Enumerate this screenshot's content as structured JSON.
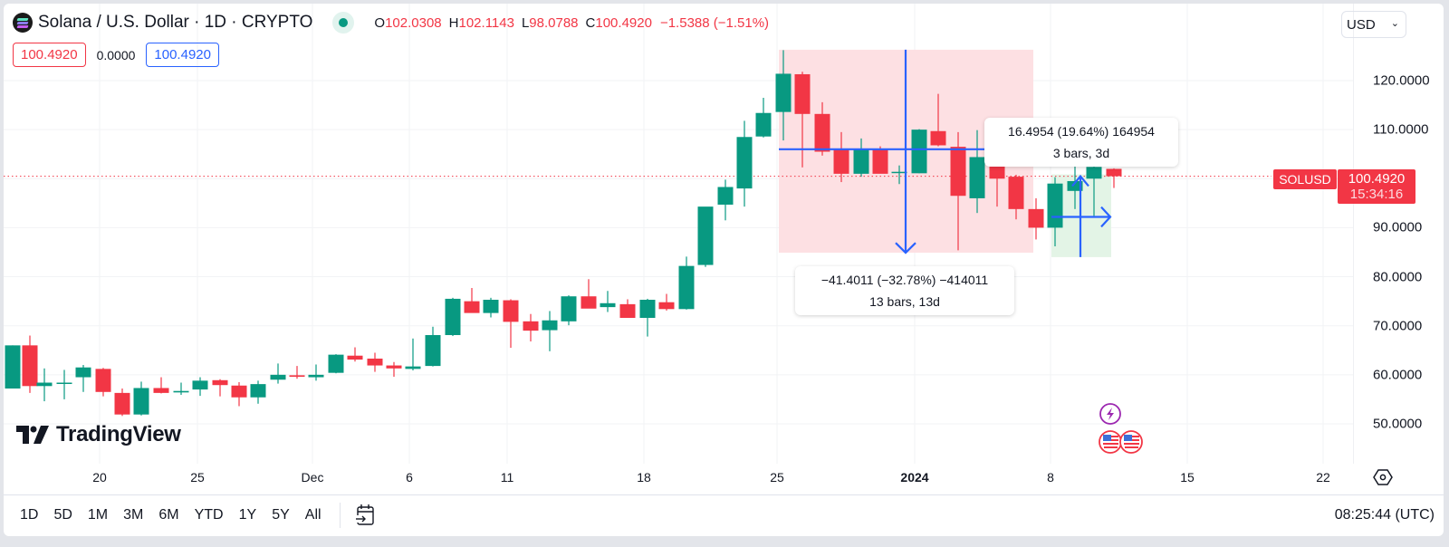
{
  "header": {
    "symbol_title": "Solana / U.S. Dollar · 1D · CRYPTO",
    "logo_icon": "solana-logo-icon",
    "market_status": "open",
    "ohlc": {
      "o_label": "O",
      "o_value": "102.0308",
      "h_label": "H",
      "h_value": "102.1143",
      "l_label": "L",
      "l_value": "98.0788",
      "c_label": "C",
      "c_value": "100.4920",
      "change": "−1.5388 (−1.51%)"
    },
    "bid": "100.4920",
    "spread": "0.0000",
    "ask": "100.4920"
  },
  "currency_select": {
    "value": "USD"
  },
  "price_axis": {
    "labels": [
      "120.0000",
      "110.0000",
      "90.0000",
      "80.0000",
      "70.0000",
      "60.0000",
      "50.0000"
    ],
    "symbol_tag": "SOLUSD",
    "last_price": "100.4920",
    "countdown": "15:34:16"
  },
  "time_axis": {
    "labels": [
      {
        "text": "20",
        "x": 110,
        "bold": false
      },
      {
        "text": "25",
        "x": 218,
        "bold": false
      },
      {
        "text": "Dec",
        "x": 345,
        "bold": false
      },
      {
        "text": "6",
        "x": 452,
        "bold": false
      },
      {
        "text": "11",
        "x": 560,
        "bold": false
      },
      {
        "text": "18",
        "x": 711,
        "bold": false
      },
      {
        "text": "25",
        "x": 858,
        "bold": false
      },
      {
        "text": "2024",
        "x": 1010,
        "bold": true
      },
      {
        "text": "8",
        "x": 1160,
        "bold": false
      },
      {
        "text": "15",
        "x": 1311,
        "bold": false
      },
      {
        "text": "22",
        "x": 1461,
        "bold": false
      }
    ]
  },
  "bottom_toolbar": {
    "ranges": [
      "1D",
      "5D",
      "1M",
      "3M",
      "6M",
      "YTD",
      "1Y",
      "5Y",
      "All"
    ],
    "goto_date_icon": "calendar-goto-icon",
    "clock": "08:25:44 (UTC)"
  },
  "branding": {
    "name": "TradingView"
  },
  "measurements": [
    {
      "value_line": "−41.4011 (−32.78%) −414011",
      "bars_line": "13 bars, 13d",
      "direction": "down"
    },
    {
      "value_line": "16.4954 (19.64%) 164954",
      "bars_line": "3 bars, 3d",
      "direction": "up"
    }
  ],
  "colors": {
    "up": "#089981",
    "down": "#f23645",
    "measure_line": "#2962ff",
    "measure_down_fill": "#fde0e3",
    "measure_up_fill": "#e3f4e6"
  },
  "chart_data": {
    "type": "candlestick",
    "title": "Solana / U.S. Dollar · 1D · CRYPTO",
    "xlabel": "",
    "ylabel": "USD",
    "ylim": [
      45,
      127
    ],
    "y_ticks": [
      50,
      60,
      70,
      80,
      90,
      110,
      120
    ],
    "x_ticks": [
      "20",
      "25",
      "Dec",
      "6",
      "11",
      "18",
      "25",
      "2024",
      "8",
      "15",
      "22"
    ],
    "last_price": 100.492,
    "candles": [
      {
        "x": 10,
        "o": 57.2,
        "h": 66.0,
        "l": 57.2,
        "c": 66.0
      },
      {
        "x": 29,
        "o": 66.0,
        "h": 68.0,
        "l": 56.3,
        "c": 57.7
      },
      {
        "x": 45,
        "o": 57.7,
        "h": 61.3,
        "l": 54.6,
        "c": 58.4
      },
      {
        "x": 67,
        "o": 58.2,
        "h": 61.0,
        "l": 55.0,
        "c": 58.4
      },
      {
        "x": 88,
        "o": 59.5,
        "h": 62.0,
        "l": 56.5,
        "c": 61.5
      },
      {
        "x": 110,
        "o": 61.2,
        "h": 61.4,
        "l": 55.6,
        "c": 56.5
      },
      {
        "x": 131,
        "o": 56.3,
        "h": 57.2,
        "l": 51.6,
        "c": 51.9
      },
      {
        "x": 152,
        "o": 51.9,
        "h": 58.6,
        "l": 51.7,
        "c": 57.3
      },
      {
        "x": 174,
        "o": 57.3,
        "h": 59.5,
        "l": 56.2,
        "c": 56.3
      },
      {
        "x": 196,
        "o": 56.4,
        "h": 58.4,
        "l": 55.9,
        "c": 56.7
      },
      {
        "x": 217,
        "o": 57.0,
        "h": 59.5,
        "l": 55.7,
        "c": 58.8
      },
      {
        "x": 239,
        "o": 58.9,
        "h": 59.1,
        "l": 55.6,
        "c": 57.9
      },
      {
        "x": 260,
        "o": 57.8,
        "h": 58.5,
        "l": 53.6,
        "c": 55.4
      },
      {
        "x": 281,
        "o": 55.4,
        "h": 58.8,
        "l": 54.1,
        "c": 58.1
      },
      {
        "x": 303,
        "o": 59.0,
        "h": 62.3,
        "l": 58.2,
        "c": 60.0
      },
      {
        "x": 324,
        "o": 59.9,
        "h": 61.8,
        "l": 59.2,
        "c": 59.6
      },
      {
        "x": 345,
        "o": 59.5,
        "h": 62.1,
        "l": 58.8,
        "c": 60.0
      },
      {
        "x": 367,
        "o": 60.4,
        "h": 64.2,
        "l": 60.3,
        "c": 64.1
      },
      {
        "x": 388,
        "o": 63.9,
        "h": 65.6,
        "l": 62.7,
        "c": 63.1
      },
      {
        "x": 410,
        "o": 63.3,
        "h": 64.5,
        "l": 60.6,
        "c": 61.9
      },
      {
        "x": 431,
        "o": 61.9,
        "h": 62.6,
        "l": 59.6,
        "c": 61.3
      },
      {
        "x": 452,
        "o": 61.2,
        "h": 67.4,
        "l": 60.9,
        "c": 61.7
      },
      {
        "x": 474,
        "o": 61.8,
        "h": 69.8,
        "l": 61.7,
        "c": 68.1
      },
      {
        "x": 496,
        "o": 68.1,
        "h": 75.7,
        "l": 67.9,
        "c": 75.5
      },
      {
        "x": 517,
        "o": 75.0,
        "h": 77.7,
        "l": 73.0,
        "c": 72.6
      },
      {
        "x": 538,
        "o": 72.6,
        "h": 75.7,
        "l": 71.7,
        "c": 75.3
      },
      {
        "x": 560,
        "o": 75.2,
        "h": 75.4,
        "l": 65.5,
        "c": 70.8
      },
      {
        "x": 582,
        "o": 70.9,
        "h": 72.4,
        "l": 66.8,
        "c": 69.0
      },
      {
        "x": 603,
        "o": 69.1,
        "h": 73.0,
        "l": 64.8,
        "c": 71.1
      },
      {
        "x": 624,
        "o": 70.9,
        "h": 76.2,
        "l": 70.1,
        "c": 76.0
      },
      {
        "x": 646,
        "o": 76.0,
        "h": 79.5,
        "l": 73.7,
        "c": 73.5
      },
      {
        "x": 667,
        "o": 73.8,
        "h": 77.1,
        "l": 72.8,
        "c": 74.6
      },
      {
        "x": 689,
        "o": 74.4,
        "h": 75.4,
        "l": 71.7,
        "c": 71.6
      },
      {
        "x": 711,
        "o": 71.6,
        "h": 75.5,
        "l": 67.8,
        "c": 75.3
      },
      {
        "x": 732,
        "o": 74.8,
        "h": 76.5,
        "l": 73.1,
        "c": 73.4
      },
      {
        "x": 754,
        "o": 73.4,
        "h": 84.1,
        "l": 73.3,
        "c": 82.2
      },
      {
        "x": 775,
        "o": 82.4,
        "h": 93.7,
        "l": 82.0,
        "c": 94.3
      },
      {
        "x": 797,
        "o": 94.7,
        "h": 99.8,
        "l": 91.5,
        "c": 98.3
      },
      {
        "x": 818,
        "o": 98.0,
        "h": 111.8,
        "l": 94.3,
        "c": 108.5
      },
      {
        "x": 839,
        "o": 108.6,
        "h": 116.5,
        "l": 108.4,
        "c": 113.4
      },
      {
        "x": 861,
        "o": 113.6,
        "h": 126.2,
        "l": 107.8,
        "c": 121.4
      },
      {
        "x": 882,
        "o": 121.3,
        "h": 121.8,
        "l": 102.3,
        "c": 113.2
      },
      {
        "x": 904,
        "o": 113.2,
        "h": 115.6,
        "l": 104.7,
        "c": 105.5
      },
      {
        "x": 925,
        "o": 106.0,
        "h": 109.5,
        "l": 99.3,
        "c": 101.0
      },
      {
        "x": 947,
        "o": 101.0,
        "h": 108.2,
        "l": 100.4,
        "c": 106.0
      },
      {
        "x": 968,
        "o": 105.9,
        "h": 106.6,
        "l": 102.2,
        "c": 101.0
      },
      {
        "x": 989,
        "o": 101.4,
        "h": 102.7,
        "l": 98.9,
        "c": 101.4
      },
      {
        "x": 1011,
        "o": 101.1,
        "h": 110.1,
        "l": 101.1,
        "c": 110.0
      },
      {
        "x": 1032,
        "o": 109.7,
        "h": 117.3,
        "l": 106.6,
        "c": 106.8
      },
      {
        "x": 1054,
        "o": 106.5,
        "h": 109.5,
        "l": 85.4,
        "c": 96.5
      },
      {
        "x": 1075,
        "o": 96.0,
        "h": 109.9,
        "l": 93.0,
        "c": 104.4
      },
      {
        "x": 1097,
        "o": 104.8,
        "h": 105.5,
        "l": 94.3,
        "c": 100.0
      },
      {
        "x": 1118,
        "o": 100.4,
        "h": 100.8,
        "l": 91.7,
        "c": 93.8
      },
      {
        "x": 1140,
        "o": 93.8,
        "h": 96.0,
        "l": 87.6,
        "c": 90.0
      },
      {
        "x": 1161,
        "o": 90.0,
        "h": 100.3,
        "l": 86.2,
        "c": 99.0
      },
      {
        "x": 1183,
        "o": 97.5,
        "h": 106.0,
        "l": 93.8,
        "c": 99.5
      },
      {
        "x": 1204,
        "o": 100.0,
        "h": 104.3,
        "l": 92.4,
        "c": 102.4
      },
      {
        "x": 1226,
        "o": 102.0,
        "h": 102.1,
        "l": 98.1,
        "c": 100.5
      }
    ],
    "annotations": [
      {
        "type": "price-range",
        "from_price": 126.3,
        "to_price": 84.9,
        "bars": 13,
        "label": "−41.4011 (−32.78%) −414011 / 13 bars, 13d"
      },
      {
        "type": "price-range",
        "from_price": 84.0,
        "to_price": 100.5,
        "bars": 3,
        "label": "16.4954 (19.64%) 164954 / 3 bars, 3d"
      }
    ]
  }
}
